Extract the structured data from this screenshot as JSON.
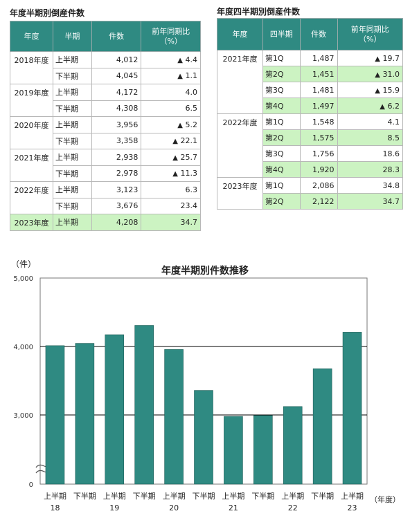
{
  "half_table": {
    "title": "年度半期別倒産件数",
    "headers": [
      "年度",
      "半期",
      "件数",
      "前年同期比",
      "（%）"
    ],
    "groups": [
      {
        "year": "2018年度",
        "rows": [
          {
            "period": "上半期",
            "count": "4,012",
            "tri": "▲",
            "ratio": "4.4"
          },
          {
            "period": "下半期",
            "count": "4,045",
            "tri": "▲",
            "ratio": "1.1"
          }
        ]
      },
      {
        "year": "2019年度",
        "rows": [
          {
            "period": "上半期",
            "count": "4,172",
            "tri": "",
            "ratio": "4.0"
          },
          {
            "period": "下半期",
            "count": "4,308",
            "tri": "",
            "ratio": "6.5"
          }
        ]
      },
      {
        "year": "2020年度",
        "rows": [
          {
            "period": "上半期",
            "count": "3,956",
            "tri": "▲",
            "ratio": "5.2"
          },
          {
            "period": "下半期",
            "count": "3,358",
            "tri": "▲",
            "ratio": "22.1"
          }
        ]
      },
      {
        "year": "2021年度",
        "rows": [
          {
            "period": "上半期",
            "count": "2,938",
            "tri": "▲",
            "ratio": "25.7"
          },
          {
            "period": "下半期",
            "count": "2,978",
            "tri": "▲",
            "ratio": "11.3"
          }
        ]
      },
      {
        "year": "2022年度",
        "rows": [
          {
            "period": "上半期",
            "count": "3,123",
            "tri": "",
            "ratio": "6.3"
          },
          {
            "period": "下半期",
            "count": "3,676",
            "tri": "",
            "ratio": "23.4"
          }
        ]
      },
      {
        "year": "2023年度",
        "highlight": true,
        "rows": [
          {
            "period": "上半期",
            "count": "4,208",
            "tri": "",
            "ratio": "34.7",
            "highlight": true
          }
        ]
      }
    ]
  },
  "quarter_table": {
    "title": "年度四半期別倒産件数",
    "headers": [
      "年度",
      "四半期",
      "件数",
      "前年同期比",
      "（%）"
    ],
    "groups": [
      {
        "year": "2021年度",
        "rows": [
          {
            "period": "第1Q",
            "count": "1,487",
            "tri": "▲",
            "ratio": "19.7"
          },
          {
            "period": "第2Q",
            "count": "1,451",
            "tri": "▲",
            "ratio": "31.0",
            "highlight": true
          },
          {
            "period": "第3Q",
            "count": "1,481",
            "tri": "▲",
            "ratio": "15.9"
          },
          {
            "period": "第4Q",
            "count": "1,497",
            "tri": "▲",
            "ratio": "6.2",
            "highlight": true
          }
        ]
      },
      {
        "year": "2022年度",
        "rows": [
          {
            "period": "第1Q",
            "count": "1,548",
            "tri": "",
            "ratio": "4.1"
          },
          {
            "period": "第2Q",
            "count": "1,575",
            "tri": "",
            "ratio": "8.5",
            "highlight": true
          },
          {
            "period": "第3Q",
            "count": "1,756",
            "tri": "",
            "ratio": "18.6"
          },
          {
            "period": "第4Q",
            "count": "1,920",
            "tri": "",
            "ratio": "28.3",
            "highlight": true
          }
        ]
      },
      {
        "year": "2023年度",
        "rows": [
          {
            "period": "第1Q",
            "count": "2,086",
            "tri": "",
            "ratio": "34.8"
          },
          {
            "period": "第2Q",
            "count": "2,122",
            "tri": "",
            "ratio": "34.7",
            "highlight": true
          }
        ]
      }
    ]
  },
  "chart_data": {
    "type": "bar",
    "title": "年度半期別件数推移",
    "ylabel": "（件）",
    "xlabel": "（年度）",
    "categories": [
      "上半期",
      "下半期",
      "上半期",
      "下半期",
      "上半期",
      "下半期",
      "上半期",
      "下半期",
      "上半期",
      "下半期",
      "上半期"
    ],
    "year_labels": [
      "18",
      "",
      "19",
      "",
      "20",
      "",
      "21",
      "",
      "22",
      "",
      "23"
    ],
    "values": [
      4012,
      4045,
      4172,
      4308,
      3956,
      3358,
      2938,
      2978,
      3123,
      3676,
      4208
    ],
    "y_ticks": [
      {
        "value": 5000,
        "label": "5,000"
      },
      {
        "value": 4000,
        "label": "4,000"
      },
      {
        "value": 3000,
        "label": "3,000"
      },
      {
        "value": 0,
        "label": "0"
      }
    ],
    "axis_break": true,
    "ylim": [
      0,
      5000
    ],
    "grid": true,
    "bar_color": "#2f8a82"
  }
}
